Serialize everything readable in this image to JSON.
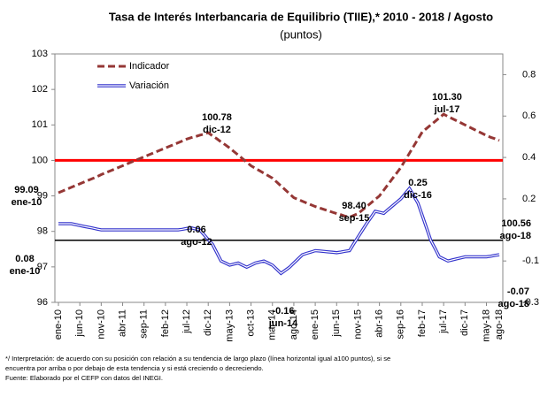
{
  "chart_data": {
    "type": "line",
    "title": "Tasa de Interés Interbancaria de Equilibrio (TIIE),* 2010 - 2018 / Agosto",
    "subtitle": "(puntos)",
    "categories": [
      "ene-10",
      null,
      null,
      null,
      null,
      "jun-10",
      null,
      null,
      null,
      null,
      "nov-10",
      null,
      null,
      null,
      null,
      "abr-11",
      null,
      null,
      null,
      null,
      "sep-11",
      null,
      null,
      null,
      null,
      "feb-12",
      null,
      null,
      null,
      null,
      "jul-12",
      null,
      null,
      null,
      null,
      "dic-12",
      null,
      null,
      null,
      null,
      "may-13",
      null,
      null,
      null,
      null,
      "oct-13",
      null,
      null,
      null,
      null,
      "mar-14",
      null,
      null,
      null,
      null,
      "ago-14",
      null,
      null,
      null,
      null,
      "ene-15",
      null,
      null,
      null,
      null,
      "jun-15",
      null,
      null,
      null,
      null,
      "nov-15",
      null,
      null,
      null,
      null,
      "abr-16",
      null,
      null,
      null,
      null,
      "sep-16",
      null,
      null,
      null,
      null,
      "feb-17",
      null,
      null,
      null,
      null,
      "jul-17",
      null,
      null,
      null,
      null,
      "dic-17",
      null,
      null,
      null,
      null,
      "may-18",
      null,
      null,
      "ago-18"
    ],
    "series": [
      {
        "name": "Indicador",
        "color": "#953735",
        "axis": "y",
        "values": [
          99.09,
          99.14,
          99.19,
          99.24,
          99.29,
          99.34,
          99.39,
          99.44,
          99.49,
          99.54,
          99.6,
          99.65,
          99.7,
          99.75,
          99.8,
          99.85,
          99.9,
          99.95,
          100.0,
          100.05,
          100.1,
          100.15,
          100.2,
          100.25,
          100.3,
          100.35,
          100.4,
          100.45,
          100.5,
          100.55,
          100.6,
          100.64,
          100.67,
          100.71,
          100.74,
          100.78,
          100.69,
          100.61,
          100.52,
          100.44,
          100.35,
          100.25,
          100.15,
          100.05,
          99.95,
          99.85,
          99.78,
          99.71,
          99.64,
          99.57,
          99.5,
          99.39,
          99.28,
          99.17,
          99.06,
          98.95,
          98.9,
          98.85,
          98.8,
          98.75,
          98.7,
          98.66,
          98.62,
          98.58,
          98.54,
          98.5,
          98.47,
          98.43,
          98.4,
          98.45,
          98.5,
          98.6,
          98.7,
          98.8,
          98.9,
          99.0,
          99.16,
          99.32,
          99.48,
          99.64,
          99.8,
          100.0,
          100.2,
          100.4,
          100.6,
          100.8,
          100.9,
          101.0,
          101.1,
          101.2,
          101.3,
          101.24,
          101.18,
          101.12,
          101.06,
          101.0,
          100.94,
          100.88,
          100.82,
          100.76,
          100.7,
          100.65,
          100.61,
          100.56
        ]
      },
      {
        "name": "Variación",
        "color": "#3333cc",
        "axis": "y2",
        "values": [
          0.08,
          0.08,
          0.08,
          0.08,
          0.076,
          0.071,
          0.067,
          0.063,
          0.059,
          0.054,
          0.05,
          0.05,
          0.05,
          0.05,
          0.05,
          0.05,
          0.05,
          0.05,
          0.05,
          0.05,
          0.05,
          0.05,
          0.05,
          0.05,
          0.05,
          0.05,
          0.05,
          0.05,
          0.05,
          0.053,
          0.057,
          0.06,
          0.055,
          0.05,
          0.027,
          0.003,
          -0.02,
          -0.06,
          -0.1,
          -0.11,
          -0.12,
          -0.115,
          -0.11,
          -0.12,
          -0.13,
          -0.12,
          -0.11,
          -0.105,
          -0.1,
          -0.11,
          -0.12,
          -0.14,
          -0.16,
          -0.145,
          -0.13,
          -0.11,
          -0.09,
          -0.07,
          -0.063,
          -0.057,
          -0.05,
          -0.052,
          -0.054,
          -0.056,
          -0.058,
          -0.06,
          -0.057,
          -0.053,
          -0.05,
          -0.017,
          0.015,
          0.048,
          0.08,
          0.11,
          0.14,
          0.135,
          0.13,
          0.148,
          0.165,
          0.183,
          0.2,
          0.225,
          0.25,
          0.215,
          0.18,
          0.12,
          0.06,
          0.0,
          -0.04,
          -0.08,
          -0.09,
          -0.1,
          -0.095,
          -0.09,
          -0.085,
          -0.08,
          -0.08,
          -0.08,
          -0.08,
          -0.08,
          -0.08,
          -0.077,
          -0.073,
          -0.07
        ]
      }
    ],
    "ylim": [
      96,
      103
    ],
    "yticks": [
      96,
      97,
      98,
      99,
      100,
      101,
      102,
      103
    ],
    "y2lim": [
      -0.3,
      0.9
    ],
    "y2ticks": [
      0.8,
      0.6,
      0.4,
      0.2,
      -0.1,
      -0.3
    ],
    "reference_lines": [
      {
        "value": 100,
        "axis": "y",
        "color": "#ff0000"
      },
      {
        "value": 0,
        "axis": "y2",
        "color": "#000000"
      }
    ],
    "annotations": [
      {
        "value": "99.09",
        "date": "ene-10",
        "color": "#953735"
      },
      {
        "value": "100.78",
        "date": "dic-12",
        "color": "#953735"
      },
      {
        "value": "98.40",
        "date": "sep-15",
        "color": "#953735"
      },
      {
        "value": "101.30",
        "date": "jul-17",
        "color": "#953735"
      },
      {
        "value": "100.56",
        "date": "ago-18",
        "color": "#953735"
      },
      {
        "value": "0.08",
        "date": "ene-10",
        "color": "#3333cc"
      },
      {
        "value": "0.06",
        "date": "ago-12",
        "color": "#3333cc"
      },
      {
        "value": "-0.16",
        "date": "jun-14",
        "color": "#3333cc"
      },
      {
        "value": "0.25",
        "date": "dic-16",
        "color": "#3333cc"
      },
      {
        "value": "-0.07",
        "date": "ago-18",
        "color": "#3333cc"
      }
    ],
    "footnotes": [
      "*/ Interpretación: de acuerdo con su posición con relación a su tendencia de largo plazo (línea horizontal igual a100 puntos), si se",
      "encuentra por arriba o por debajo de esta tendencia y si está creciendo o decreciendo.",
      "Fuente: Elaborado por el CEFP con datos del INEGI."
    ]
  }
}
